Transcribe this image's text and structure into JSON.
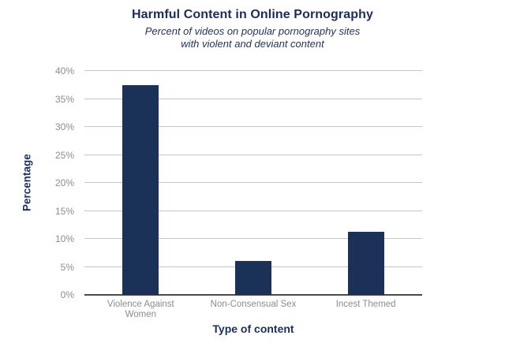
{
  "chart_data": {
    "type": "bar",
    "title": "Harmful Content in Online Pornography",
    "subtitle": "Percent of videos on popular pornography sites with violent and deviant content",
    "subtitle_lines": [
      "Percent of videos on popular pornography sites",
      "with violent and deviant content"
    ],
    "categories": [
      "Violence Against Women",
      "Non-Consensual Sex",
      "Incest Themed"
    ],
    "values": [
      37.5,
      6,
      11.3
    ],
    "xlabel": "Type of content",
    "ylabel": "Percentage",
    "ylim": [
      0,
      40
    ],
    "ytick_step": 5,
    "ytick_suffix": "%",
    "grid": true,
    "legend": "none",
    "bar_color": "#1b3158"
  },
  "colors": {
    "background": "#ffffff",
    "navy_text": "#1b2f5c",
    "bar_fill": "#1b3158",
    "gridline": "#c7c7c7",
    "axis_line": "#4a4a4a",
    "tick_label": "#8c8c8c"
  }
}
